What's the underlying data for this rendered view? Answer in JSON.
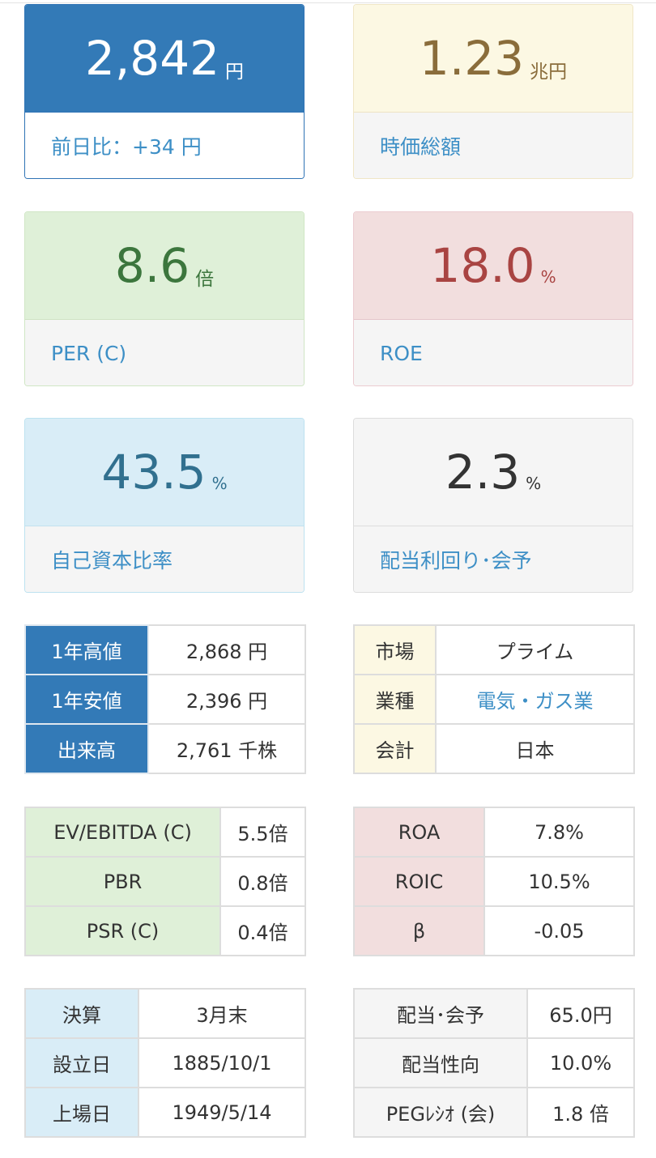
{
  "cards": {
    "price": {
      "value": "2,842",
      "unit": "円",
      "label": "前日比：+34 円"
    },
    "market_cap": {
      "value": "1.23",
      "unit": "兆円",
      "label": "時価総額"
    },
    "per": {
      "value": "8.6",
      "unit": "倍",
      "label": "PER (C)"
    },
    "roe": {
      "value": "18.0",
      "unit": "%",
      "label": "ROE"
    },
    "equity_ratio": {
      "value": "43.5",
      "unit": "%",
      "label": "自己資本比率"
    },
    "dividend_yield": {
      "value": "2.3",
      "unit": "%",
      "label": "配当利回り･会予"
    }
  },
  "price_table": [
    {
      "label": "1年高値",
      "value": "2,868 円"
    },
    {
      "label": "1年安値",
      "value": "2,396 円"
    },
    {
      "label": "出来高",
      "value": "2,761 千株"
    }
  ],
  "company_table": [
    {
      "label": "市場",
      "value": "プライム"
    },
    {
      "label": "業種",
      "value": "電気・ガス業"
    },
    {
      "label": "会計",
      "value": "日本"
    }
  ],
  "valuation_table": [
    {
      "label": "EV/EBITDA (C)",
      "value": "5.5倍"
    },
    {
      "label": "PBR",
      "value": "0.8倍"
    },
    {
      "label": "PSR (C)",
      "value": "0.4倍"
    }
  ],
  "return_table": [
    {
      "label": "ROA",
      "value": "7.8%"
    },
    {
      "label": "ROIC",
      "value": "10.5%"
    },
    {
      "label": "β",
      "value": "-0.05"
    }
  ],
  "dates_table": [
    {
      "label": "決算",
      "value": "3月末"
    },
    {
      "label": "設立日",
      "value": "1885/10/1"
    },
    {
      "label": "上場日",
      "value": "1949/5/14"
    }
  ],
  "dividend_table": [
    {
      "label": "配当･会予",
      "value": "65.0円"
    },
    {
      "label": "配当性向",
      "value": "10.0%"
    },
    {
      "label": "PEGﾚｼｵ (会)",
      "value": "1.8 倍"
    }
  ],
  "colors": {
    "primary": "#337ab7",
    "warning_bg": "#fcf8e3",
    "success_bg": "#dff0d8",
    "danger_bg": "#f2dede",
    "info_bg": "#d9edf7",
    "link": "#3d8fc6"
  }
}
